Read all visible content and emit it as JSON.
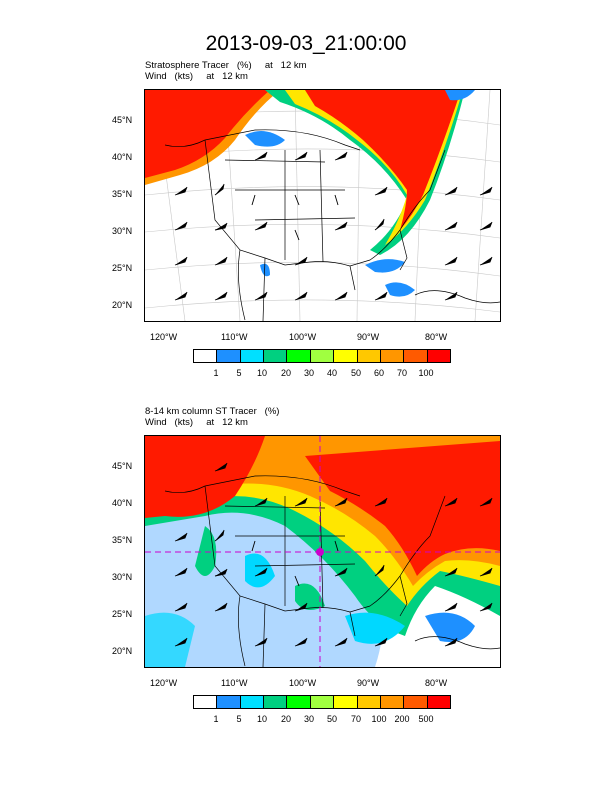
{
  "title": "2013-09-03_21:00:00",
  "panel1": {
    "subtitle_line1": "Stratosphere Tracer   (%)     at   12 km",
    "subtitle_line2": "Wind   (kts)     at   12 km",
    "lat_labels": [
      "45°N",
      "40°N",
      "35°N",
      "30°N",
      "25°N",
      "20°N"
    ],
    "lon_labels": [
      "120°W",
      "110°W",
      "100°W",
      "90°W",
      "80°W"
    ],
    "colorbar_labels": [
      "1",
      "5",
      "10",
      "20",
      "30",
      "40",
      "50",
      "60",
      "70",
      "100"
    ]
  },
  "panel2": {
    "subtitle_line1": "8-14 km column ST Tracer   (%)",
    "subtitle_line2": "Wind   (kts)     at   12 km",
    "lat_labels": [
      "45°N",
      "40°N",
      "35°N",
      "30°N",
      "25°N",
      "20°N"
    ],
    "lon_labels": [
      "120°W",
      "110°W",
      "100°W",
      "90°W",
      "80°W"
    ],
    "colorbar_labels": [
      "1",
      "5",
      "10",
      "20",
      "30",
      "50",
      "70",
      "100",
      "200",
      "500"
    ]
  },
  "colorbar_colors": [
    "#ffffff",
    "#1e90ff",
    "#00e0ff",
    "#00d080",
    "#00ff00",
    "#a0ff40",
    "#ffff00",
    "#ffc800",
    "#ff9600",
    "#ff5a00",
    "#ff0000"
  ],
  "colors": {
    "high": "#ff1a00",
    "orange": "#ff8c00",
    "yellow": "#ffe600",
    "green": "#00e676",
    "cyan": "#00d8ff",
    "blue": "#1e90ff",
    "marker": "#cc00cc"
  }
}
